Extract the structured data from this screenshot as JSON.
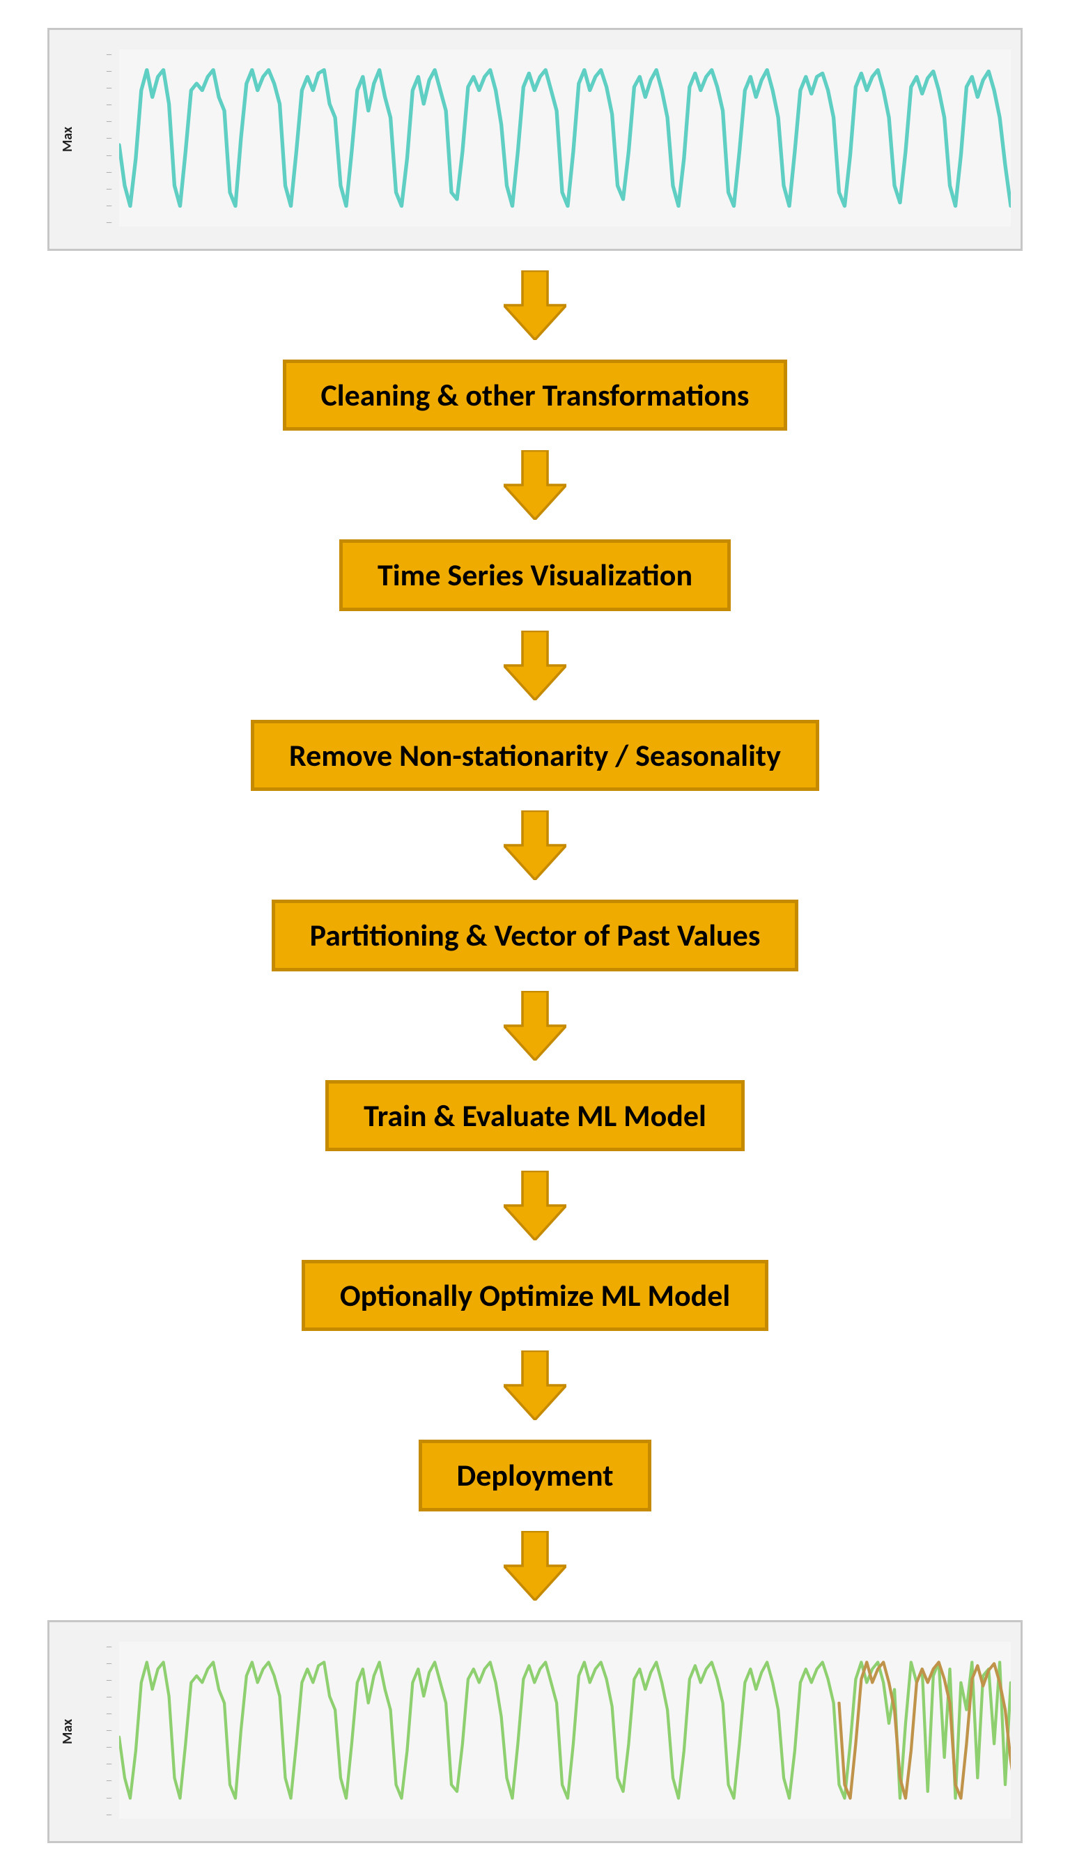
{
  "colors": {
    "box_fill": "#f0ab00",
    "box_border": "#c68a00",
    "arrow_fill": "#f0ab00",
    "arrow_border": "#c68a00",
    "chart_line_top": "#5fcfc4",
    "chart_line_bottom_main": "#8ecf6f",
    "chart_line_bottom_overlay": "#c0934a",
    "chart_border": "#c7c7c7",
    "chart_bg": "#f2f2f2",
    "chart_text": "#555555",
    "ylabel_text": "#222222"
  },
  "steps": [
    "Cleaning & other Transformations",
    "Time Series Visualization",
    "Remove Non-stationarity / Seasonality",
    "Partitioning & Vector of Past Values",
    "Train & Evaluate ML Model",
    "Optionally Optimize ML Model",
    "Deployment"
  ],
  "top_chart": {
    "title": "",
    "ylabel": "Max",
    "xlabel": "",
    "stroke_width": 5,
    "y_tick_count": 11,
    "x_tick_count": 8,
    "viewbox_w": 1200,
    "viewbox_h": 260,
    "series_color_key": "chart_line_top",
    "series_y": [
      140,
      200,
      230,
      160,
      60,
      30,
      70,
      40,
      30,
      80,
      200,
      230,
      150,
      60,
      50,
      60,
      40,
      30,
      70,
      90,
      210,
      230,
      130,
      50,
      30,
      60,
      40,
      30,
      50,
      80,
      200,
      230,
      150,
      60,
      40,
      60,
      35,
      30,
      80,
      100,
      200,
      230,
      150,
      60,
      40,
      90,
      50,
      30,
      70,
      100,
      210,
      230,
      160,
      60,
      40,
      80,
      45,
      30,
      60,
      90,
      210,
      220,
      150,
      55,
      40,
      60,
      40,
      30,
      60,
      110,
      200,
      230,
      150,
      55,
      35,
      60,
      40,
      30,
      60,
      90,
      210,
      230,
      150,
      50,
      30,
      60,
      40,
      30,
      55,
      95,
      200,
      220,
      150,
      55,
      40,
      70,
      45,
      30,
      60,
      100,
      200,
      230,
      160,
      55,
      35,
      60,
      40,
      30,
      55,
      90,
      210,
      230,
      150,
      60,
      40,
      70,
      45,
      30,
      60,
      100,
      200,
      230,
      150,
      60,
      40,
      65,
      40,
      35,
      60,
      100,
      210,
      230,
      155,
      55,
      35,
      60,
      40,
      30,
      60,
      100,
      200,
      225,
      150,
      55,
      40,
      65,
      42,
      32,
      60,
      100,
      200,
      230,
      155,
      55,
      40,
      70,
      45,
      32,
      60,
      100,
      170,
      230
    ]
  },
  "bottom_chart": {
    "title": "",
    "ylabel": "Max",
    "xlabel": "",
    "stroke_width": 4,
    "y_tick_count": 11,
    "x_tick_count": 8,
    "viewbox_w": 1200,
    "viewbox_h": 260,
    "series_main_color_key": "chart_line_bottom_main",
    "series_overlay_color_key": "chart_line_bottom_overlay",
    "series_main_y": [
      140,
      200,
      230,
      160,
      60,
      30,
      70,
      40,
      30,
      80,
      200,
      230,
      150,
      60,
      50,
      60,
      40,
      30,
      70,
      90,
      210,
      230,
      130,
      50,
      30,
      60,
      40,
      30,
      50,
      80,
      200,
      230,
      150,
      60,
      40,
      60,
      35,
      30,
      80,
      100,
      200,
      230,
      150,
      60,
      40,
      90,
      50,
      30,
      70,
      100,
      210,
      230,
      160,
      60,
      40,
      80,
      45,
      30,
      60,
      90,
      210,
      220,
      150,
      55,
      40,
      60,
      40,
      30,
      60,
      110,
      200,
      230,
      150,
      55,
      35,
      60,
      40,
      30,
      60,
      90,
      210,
      230,
      150,
      50,
      30,
      60,
      40,
      30,
      55,
      95,
      200,
      220,
      150,
      55,
      40,
      70,
      45,
      30,
      60,
      100,
      200,
      230,
      160,
      55,
      35,
      60,
      40,
      30,
      55,
      90,
      210,
      230,
      150,
      60,
      40,
      70,
      45,
      30,
      60,
      100,
      200,
      230,
      160,
      60,
      40,
      60,
      40,
      30,
      55,
      90,
      210,
      230,
      150,
      55,
      30,
      60,
      40,
      30,
      60,
      120,
      70,
      230,
      120,
      30,
      60,
      40,
      220,
      50,
      30,
      170,
      40,
      230,
      60,
      100,
      30,
      200,
      50,
      40,
      150,
      30,
      210,
      60
    ],
    "overlay_start_index": 130,
    "series_overlay_y": [
      90,
      210,
      230,
      150,
      55,
      30,
      60,
      40,
      30,
      60,
      100,
      200,
      230,
      160,
      60,
      40,
      60,
      40,
      30,
      55,
      90,
      210,
      230,
      150,
      55,
      35,
      65,
      42,
      32,
      60,
      100,
      175,
      230
    ]
  }
}
